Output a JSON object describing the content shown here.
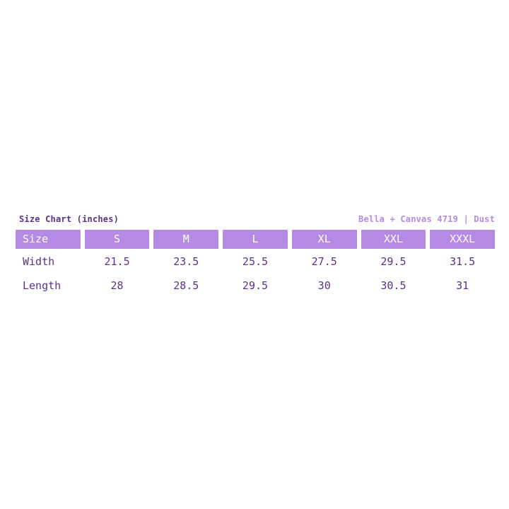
{
  "theme": {
    "page-bg": "#ffffff",
    "accent": "#b58ae4",
    "ink": "#58338c",
    "header-text": "#ffffff"
  },
  "header": {
    "title": "Size Chart (inches)",
    "product": "Bella + Canvas 4719 | Dust"
  },
  "chart_data": {
    "type": "table",
    "title": "Size Chart (inches)",
    "subtitle": "Bella + Canvas 4719 | Dust",
    "units": "inches",
    "columns": [
      "Size",
      "S",
      "M",
      "L",
      "XL",
      "XXL",
      "XXXL"
    ],
    "rows": [
      {
        "label": "Width",
        "values": [
          21.5,
          23.5,
          25.5,
          27.5,
          29.5,
          31.5
        ]
      },
      {
        "label": "Length",
        "values": [
          28,
          28.5,
          29.5,
          30,
          30.5,
          31
        ]
      }
    ]
  }
}
